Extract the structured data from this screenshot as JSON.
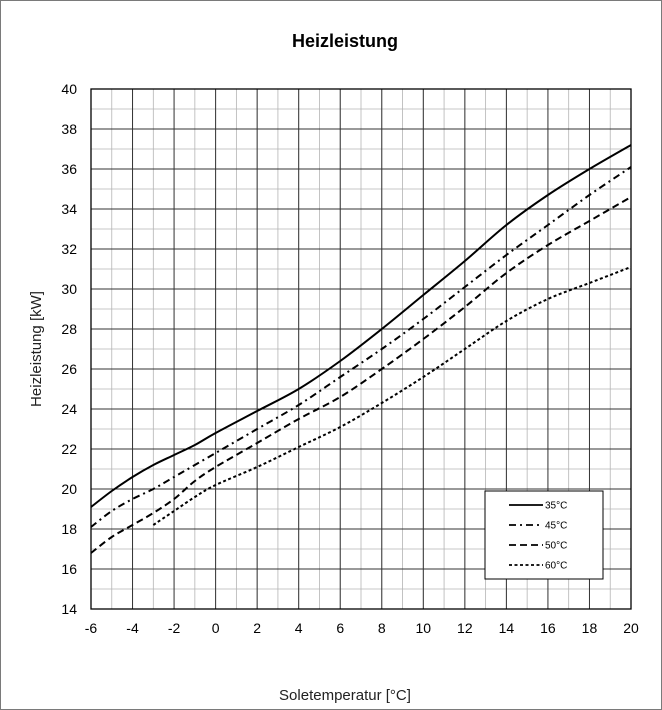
{
  "chart_data": {
    "type": "line",
    "title": "Heizleistung",
    "xlabel": "Soletemperatur [°C]",
    "ylabel": "Heizleistung [kW]",
    "xlim": [
      -6,
      20
    ],
    "ylim": [
      14,
      40
    ],
    "x_ticks": [
      -6,
      -4,
      -2,
      0,
      2,
      4,
      6,
      8,
      10,
      12,
      14,
      16,
      18,
      20
    ],
    "y_ticks": [
      14,
      16,
      18,
      20,
      22,
      24,
      26,
      28,
      30,
      32,
      34,
      36,
      38,
      40
    ],
    "x_minor_step": 1,
    "y_minor_step": 1,
    "grid": true,
    "legend_position": "bottom-right",
    "series": [
      {
        "name": "35°C",
        "style": "solid",
        "color": "#000000",
        "points": [
          [
            -6,
            19.1
          ],
          [
            -5,
            19.9
          ],
          [
            -4,
            20.6
          ],
          [
            -3,
            21.2
          ],
          [
            -2,
            21.7
          ],
          [
            -1,
            22.2
          ],
          [
            0,
            22.8
          ],
          [
            2,
            23.9
          ],
          [
            4,
            25.0
          ],
          [
            6,
            26.4
          ],
          [
            8,
            28.0
          ],
          [
            10,
            29.7
          ],
          [
            12,
            31.4
          ],
          [
            14,
            33.2
          ],
          [
            16,
            34.7
          ],
          [
            18,
            36.0
          ],
          [
            20,
            37.2
          ]
        ]
      },
      {
        "name": "45°C",
        "style": "dashdot",
        "color": "#000000",
        "points": [
          [
            -6,
            18.1
          ],
          [
            -5,
            18.9
          ],
          [
            -4,
            19.5
          ],
          [
            -3,
            20.0
          ],
          [
            -2,
            20.6
          ],
          [
            0,
            21.8
          ],
          [
            2,
            23.0
          ],
          [
            4,
            24.2
          ],
          [
            6,
            25.6
          ],
          [
            8,
            27.0
          ],
          [
            10,
            28.5
          ],
          [
            12,
            30.1
          ],
          [
            14,
            31.7
          ],
          [
            16,
            33.2
          ],
          [
            18,
            34.7
          ],
          [
            20,
            36.1
          ]
        ]
      },
      {
        "name": "50°C",
        "style": "dash",
        "color": "#000000",
        "points": [
          [
            -6,
            16.8
          ],
          [
            -5,
            17.6
          ],
          [
            -4,
            18.2
          ],
          [
            -3,
            18.8
          ],
          [
            -2,
            19.5
          ],
          [
            -1,
            20.4
          ],
          [
            0,
            21.1
          ],
          [
            2,
            22.3
          ],
          [
            4,
            23.5
          ],
          [
            6,
            24.6
          ],
          [
            8,
            26.0
          ],
          [
            10,
            27.5
          ],
          [
            12,
            29.1
          ],
          [
            14,
            30.8
          ],
          [
            16,
            32.2
          ],
          [
            18,
            33.4
          ],
          [
            20,
            34.6
          ]
        ]
      },
      {
        "name": "60°C",
        "style": "dot",
        "color": "#000000",
        "points": [
          [
            -3,
            18.2
          ],
          [
            -2,
            18.9
          ],
          [
            -1,
            19.6
          ],
          [
            0,
            20.2
          ],
          [
            2,
            21.1
          ],
          [
            4,
            22.1
          ],
          [
            6,
            23.1
          ],
          [
            8,
            24.3
          ],
          [
            10,
            25.6
          ],
          [
            12,
            27.0
          ],
          [
            14,
            28.4
          ],
          [
            16,
            29.5
          ],
          [
            18,
            30.3
          ],
          [
            20,
            31.1
          ]
        ]
      }
    ]
  }
}
